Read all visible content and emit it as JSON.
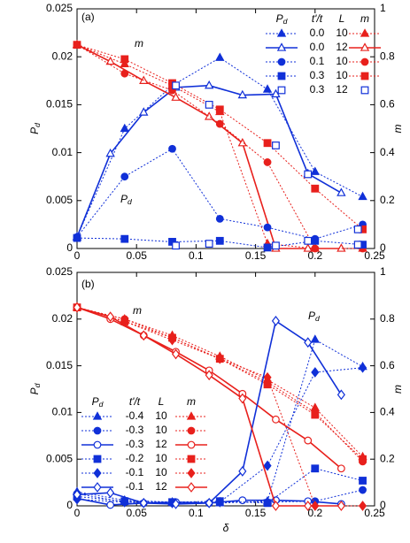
{
  "chart_data": [
    {
      "type": "line",
      "panel_label": "(a)",
      "y_label": "Pd",
      "y2_label": "m",
      "xlim": [
        0,
        0.25
      ],
      "xticks": [
        0,
        0.05,
        0.1,
        0.15,
        0.2,
        0.25
      ],
      "ylim": [
        0,
        0.025
      ],
      "yticks": [
        0,
        0.005,
        0.01,
        0.015,
        0.02,
        0.025
      ],
      "y2lim": [
        0,
        1
      ],
      "y2ticks": [
        0,
        0.2,
        0.4,
        0.6,
        0.8,
        1
      ],
      "legend_headers": [
        "Pd",
        "t'/t",
        "L",
        "m"
      ],
      "annotations": [
        "m",
        "Pd"
      ],
      "rows": [
        {
          "t_ratio": "0.0",
          "L": "10",
          "marker": "triangle",
          "filled": true,
          "line": "dotted",
          "x": [
            0,
            0.04,
            0.08,
            0.12,
            0.16,
            0.2,
            0.24
          ],
          "Pd": {
            "color": "#1030d8",
            "values": [
              0.0012,
              0.0125,
              0.017,
              0.0199,
              0.0166,
              0.008,
              0.0054
            ]
          },
          "m": {
            "color": "#e8201c",
            "axis": "y2",
            "values": [
              0.85,
              0.77,
              0.68,
              0.57,
              0.02,
              0,
              0
            ]
          }
        },
        {
          "t_ratio": "0.0",
          "L": "12",
          "marker": "triangle",
          "filled": false,
          "line": "solid",
          "x": [
            0,
            0.028,
            0.056,
            0.083,
            0.111,
            0.139,
            0.167,
            0.194,
            0.222
          ],
          "Pd": {
            "color": "#1030d8",
            "values": [
              0.0012,
              0.0099,
              0.0142,
              0.0168,
              0.017,
              0.016,
              0.0161,
              0.0078,
              0.0058
            ]
          },
          "m": {
            "color": "#e8201c",
            "axis": "y2",
            "values": [
              0.85,
              0.78,
              0.7,
              0.63,
              0.55,
              0.44,
              0,
              0,
              0
            ]
          }
        },
        {
          "t_ratio": "0.1",
          "L": "10",
          "marker": "circle",
          "filled": true,
          "line": "dotted",
          "x": [
            0,
            0.04,
            0.08,
            0.12,
            0.16,
            0.2,
            0.24
          ],
          "Pd": {
            "color": "#1030d8",
            "values": [
              0.0012,
              0.0075,
              0.0104,
              0.0031,
              0.0022,
              0.001,
              0.0025
            ]
          },
          "m": {
            "color": "#e8201c",
            "axis": "y2",
            "values": [
              0.85,
              0.73,
              0.66,
              0.52,
              0.36,
              0,
              0
            ]
          }
        },
        {
          "t_ratio": "0.3",
          "L": "10",
          "marker": "square",
          "filled": true,
          "line": "dotted",
          "x": [
            0,
            0.04,
            0.08,
            0.12,
            0.16,
            0.2,
            0.24
          ],
          "Pd": {
            "color": "#1030d8",
            "values": [
              0.0011,
              0.001,
              0.0007,
              0.0008,
              0.0001,
              0.0008,
              0.0004
            ]
          },
          "m": {
            "color": "#e8201c",
            "axis": "y2",
            "values": [
              0.85,
              0.79,
              0.69,
              0.58,
              0.44,
              0.25,
              0.08
            ]
          }
        },
        {
          "t_ratio": "0.3",
          "L": "12",
          "marker": "square",
          "filled": false,
          "line": "none",
          "x": [
            0.083,
            0.111,
            0.167,
            0.194,
            0.236
          ],
          "Pd": {
            "color": "#1030d8",
            "values": [
              0.0003,
              0.0005,
              0.0003,
              0.0008,
              0.0004
            ]
          },
          "m": {
            "color": "#1030d8",
            "axis": "y2",
            "values": [
              0.68,
              0.6,
              0.43,
              0.31,
              0.08
            ]
          }
        }
      ]
    },
    {
      "type": "line",
      "panel_label": "(b)",
      "x_label": "δ",
      "y_label": "Pd",
      "y2_label": "m",
      "xlim": [
        0,
        0.25
      ],
      "xticks": [
        0,
        0.05,
        0.1,
        0.15,
        0.2,
        0.25
      ],
      "ylim": [
        0,
        0.025
      ],
      "yticks": [
        0,
        0.005,
        0.01,
        0.015,
        0.02,
        0.025
      ],
      "y2lim": [
        0,
        1
      ],
      "y2ticks": [
        0,
        0.2,
        0.4,
        0.6,
        0.8,
        1
      ],
      "legend_headers": [
        "Pd",
        "t'/t",
        "L",
        "m"
      ],
      "annotations": [
        "m",
        "Pd"
      ],
      "rows": [
        {
          "t_ratio": "-0.4",
          "L": "10",
          "marker": "triangle",
          "filled": true,
          "line": "dotted",
          "x": [
            0,
            0.04,
            0.08,
            0.12,
            0.16,
            0.2,
            0.24
          ],
          "Pd": {
            "color": "#1030d8",
            "values": [
              0.0015,
              0.0006,
              0.0004,
              0.0003,
              0.0005,
              0.0178,
              0.0149
            ]
          },
          "m": {
            "color": "#e8201c",
            "axis": "y2",
            "values": [
              0.85,
              0.8,
              0.73,
              0.64,
              0.54,
              0.42,
              0.21
            ]
          }
        },
        {
          "t_ratio": "-0.3",
          "L": "10",
          "marker": "circle",
          "filled": true,
          "line": "dotted",
          "x": [
            0,
            0.04,
            0.08,
            0.12,
            0.16,
            0.2,
            0.24
          ],
          "Pd": {
            "color": "#1030d8",
            "values": [
              0.0013,
              0.0004,
              0.0003,
              0.0004,
              0.0004,
              0.0005,
              0.0017
            ]
          },
          "m": {
            "color": "#e8201c",
            "axis": "y2",
            "values": [
              0.85,
              0.8,
              0.72,
              0.63,
              0.53,
              0.4,
              0.19
            ]
          }
        },
        {
          "t_ratio": "-0.3",
          "L": "12",
          "marker": "circle",
          "filled": false,
          "line": "solid",
          "x": [
            0,
            0.028,
            0.056,
            0.083,
            0.111,
            0.139,
            0.167,
            0.194,
            0.222
          ],
          "Pd": {
            "color": "#1030d8",
            "values": [
              0.0008,
              0.0001,
              0.0003,
              0.0004,
              0.0003,
              0.0006,
              0.0006,
              0.0005,
              0.0002
            ]
          },
          "m": {
            "color": "#e8201c",
            "axis": "y2",
            "values": [
              0.85,
              0.8,
              0.73,
              0.66,
              0.58,
              0.48,
              0.37,
              0.28,
              0.16
            ]
          }
        },
        {
          "t_ratio": "-0.2",
          "L": "10",
          "marker": "square",
          "filled": true,
          "line": "dotted",
          "x": [
            0,
            0.04,
            0.08,
            0.12,
            0.16,
            0.2,
            0.24
          ],
          "Pd": {
            "color": "#1030d8",
            "values": [
              0.001,
              0.0005,
              0.0004,
              0.0005,
              0.0003,
              0.004,
              0.0027
            ]
          },
          "m": {
            "color": "#e8201c",
            "axis": "y2",
            "values": [
              0.85,
              0.79,
              0.72,
              0.63,
              0.52,
              0.39,
              0.2
            ]
          }
        },
        {
          "t_ratio": "-0.1",
          "L": "10",
          "marker": "diamond",
          "filled": true,
          "line": "dotted",
          "x": [
            0,
            0.04,
            0.08,
            0.12,
            0.16,
            0.2,
            0.24
          ],
          "Pd": {
            "color": "#1030d8",
            "values": [
              0.0007,
              0.0004,
              0.0003,
              0.0004,
              0.0043,
              0.0143,
              0.0148
            ]
          },
          "m": {
            "color": "#e8201c",
            "axis": "y2",
            "values": [
              0.85,
              0.79,
              0.71,
              0.63,
              0.55,
              0,
              0
            ]
          }
        },
        {
          "t_ratio": "-0.1",
          "L": "12",
          "marker": "diamond",
          "filled": false,
          "line": "solid",
          "x": [
            0,
            0.028,
            0.056,
            0.083,
            0.111,
            0.139,
            0.167,
            0.194,
            0.222
          ],
          "Pd": {
            "color": "#1030d8",
            "values": [
              0.0012,
              0.0014,
              0.0003,
              0.0002,
              0.0003,
              0.0037,
              0.0198,
              0.0175,
              0.0119
            ]
          },
          "m": {
            "color": "#e8201c",
            "axis": "y2",
            "values": [
              0.85,
              0.81,
              0.73,
              0.65,
              0.56,
              0.46,
              0,
              0,
              0
            ]
          }
        }
      ]
    }
  ]
}
